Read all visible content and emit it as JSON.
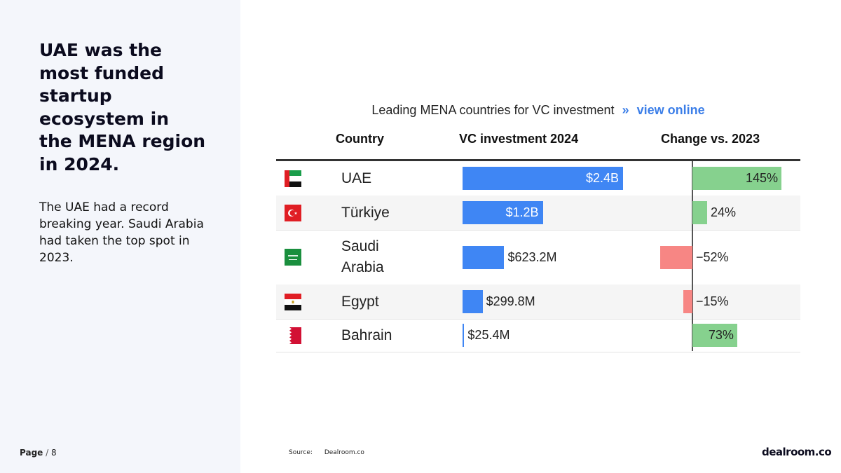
{
  "slide": {
    "headline": "UAE was the most funded startup ecosystem in the MENA region in 2024.",
    "body": "The UAE had a record breaking year. Saudi Arabia had taken the top spot in 2023.",
    "page_label": "Page",
    "page_sep": "/",
    "page_number": "8",
    "source_label": "Source:",
    "source_value": "Dealroom.co",
    "logo_text": "dealroom.co"
  },
  "chart_data": {
    "type": "table",
    "title": "Leading MENA countries for VC investment",
    "title_link_chevron": "»",
    "title_link": "view online",
    "columns": [
      "Country",
      "VC investment 2024",
      "Change vs. 2023"
    ],
    "rows": [
      {
        "country": "UAE",
        "flag": "uae-flag-icon",
        "investment": 2400,
        "investment_label": "$2.4B",
        "change": 145,
        "change_label": "145%"
      },
      {
        "country": "Türkiye",
        "flag": "turkey-flag-icon",
        "investment": 1200,
        "investment_label": "$1.2B",
        "change": 24,
        "change_label": "24%"
      },
      {
        "country": "Saudi Arabia",
        "flag": "saudi-arabia-flag-icon",
        "investment": 623.2,
        "investment_label": "$623.2M",
        "change": -52,
        "change_label": "−52%"
      },
      {
        "country": "Egypt",
        "flag": "egypt-flag-icon",
        "investment": 299.8,
        "investment_label": "$299.8M",
        "change": -15,
        "change_label": "−15%"
      },
      {
        "country": "Bahrain",
        "flag": "bahrain-flag-icon",
        "investment": 25.4,
        "investment_label": "$25.4M",
        "change": 73,
        "change_label": "73%"
      }
    ],
    "investment_unit": "$M",
    "colors": {
      "investment_bar": "#3f86f4",
      "positive_change": "#86d18e",
      "negative_change": "#f78684",
      "link": "#3b7ee8"
    }
  }
}
